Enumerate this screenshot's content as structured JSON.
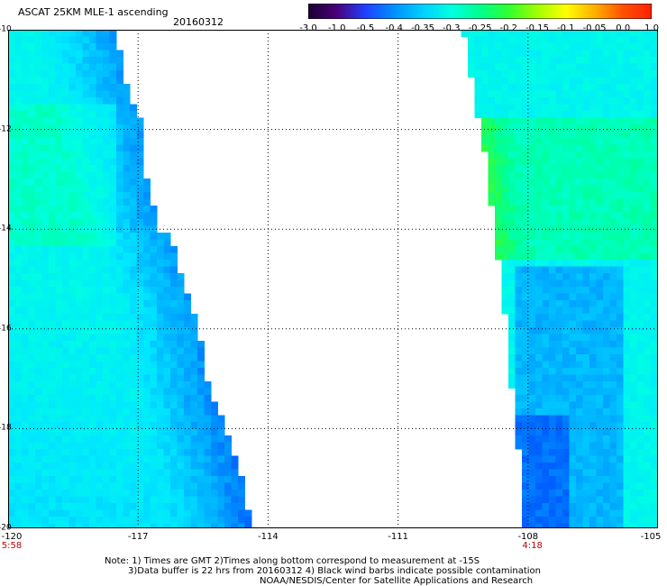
{
  "header": {
    "title": "ASCAT 25KM MLE-1 ascending",
    "date": "20160312"
  },
  "colorbar": {
    "labels": [
      "-3.0",
      "-1.0",
      "-0.5",
      "-0.4",
      "-0.35",
      "-0.3",
      "-0.25",
      "-0.2",
      "-0.15",
      "-0.1",
      "-0.05",
      "0.0",
      "1.0"
    ],
    "colors": [
      "#1a0030",
      "#4a007a",
      "#2040ff",
      "#0090ff",
      "#00d0ff",
      "#00ffe0",
      "#00ff90",
      "#30ff30",
      "#a0ff00",
      "#ffff00",
      "#ffb000",
      "#ff5000",
      "#ff2000"
    ]
  },
  "chart_data": {
    "type": "heatmap",
    "title": "ASCAT 25KM MLE-1 ascending",
    "date": "20160312",
    "xlim": [
      -120,
      -105
    ],
    "ylim": [
      -20,
      -10
    ],
    "lat_ticks": [
      "-10",
      "-12",
      "-14",
      "-16",
      "-18",
      "-20"
    ],
    "lon_ticks": [
      "-120",
      "-117",
      "-114",
      "-111",
      "-108",
      "-105"
    ],
    "lat_tick_values": [
      -10,
      -12,
      -14,
      -16,
      -18,
      -20
    ],
    "lon_tick_values": [
      -120,
      -117,
      -114,
      -111,
      -108,
      -105
    ],
    "swaths": [
      {
        "name": "west",
        "time": "5:58",
        "time_lon": -120,
        "value_range": [
          -0.4,
          -0.2
        ],
        "east_edge": [
          [
            -10.0,
            -117.6
          ],
          [
            -10.4,
            -117.4
          ],
          [
            -11.0,
            -117.3
          ],
          [
            -11.7,
            -117.0
          ],
          [
            -12.0,
            -116.9
          ],
          [
            -13.0,
            -116.8
          ],
          [
            -14.0,
            -116.5
          ],
          [
            -14.2,
            -116.2
          ],
          [
            -15.0,
            -116.0
          ],
          [
            -15.5,
            -115.8
          ],
          [
            -16.0,
            -115.6
          ],
          [
            -17.0,
            -115.4
          ],
          [
            -17.5,
            -115.2
          ],
          [
            -18.0,
            -115.0
          ],
          [
            -18.5,
            -114.8
          ],
          [
            -19.0,
            -114.6
          ],
          [
            -19.6,
            -114.5
          ],
          [
            -20.0,
            -114.3
          ]
        ]
      },
      {
        "name": "east",
        "time": "4:18",
        "time_lon": -107.9,
        "value_range": [
          -0.4,
          -0.15
        ],
        "west_edge": [
          [
            -10.0,
            -109.5
          ],
          [
            -10.6,
            -109.4
          ],
          [
            -11.0,
            -109.3
          ],
          [
            -11.5,
            -109.2
          ],
          [
            -12.0,
            -109.1
          ],
          [
            -12.5,
            -109.0
          ],
          [
            -13.0,
            -108.9
          ],
          [
            -14.0,
            -108.8
          ],
          [
            -14.5,
            -108.7
          ],
          [
            -15.0,
            -108.6
          ],
          [
            -16.0,
            -108.5
          ],
          [
            -17.0,
            -108.4
          ],
          [
            -17.5,
            -108.3
          ],
          [
            -18.0,
            -108.3
          ],
          [
            -18.5,
            -108.2
          ],
          [
            -19.0,
            -108.2
          ],
          [
            -20.0,
            -108.1
          ]
        ]
      }
    ]
  },
  "notes": {
    "line1": "Note: 1) Times are GMT 2)Times along bottom correspond to measurement at -15S",
    "line2": "3)Data buffer is 22 hrs from 20160312 4) Black wind barbs indicate possible contamination",
    "credit": "NOAA/NESDIS/Center for Satellite Applications and Research"
  }
}
